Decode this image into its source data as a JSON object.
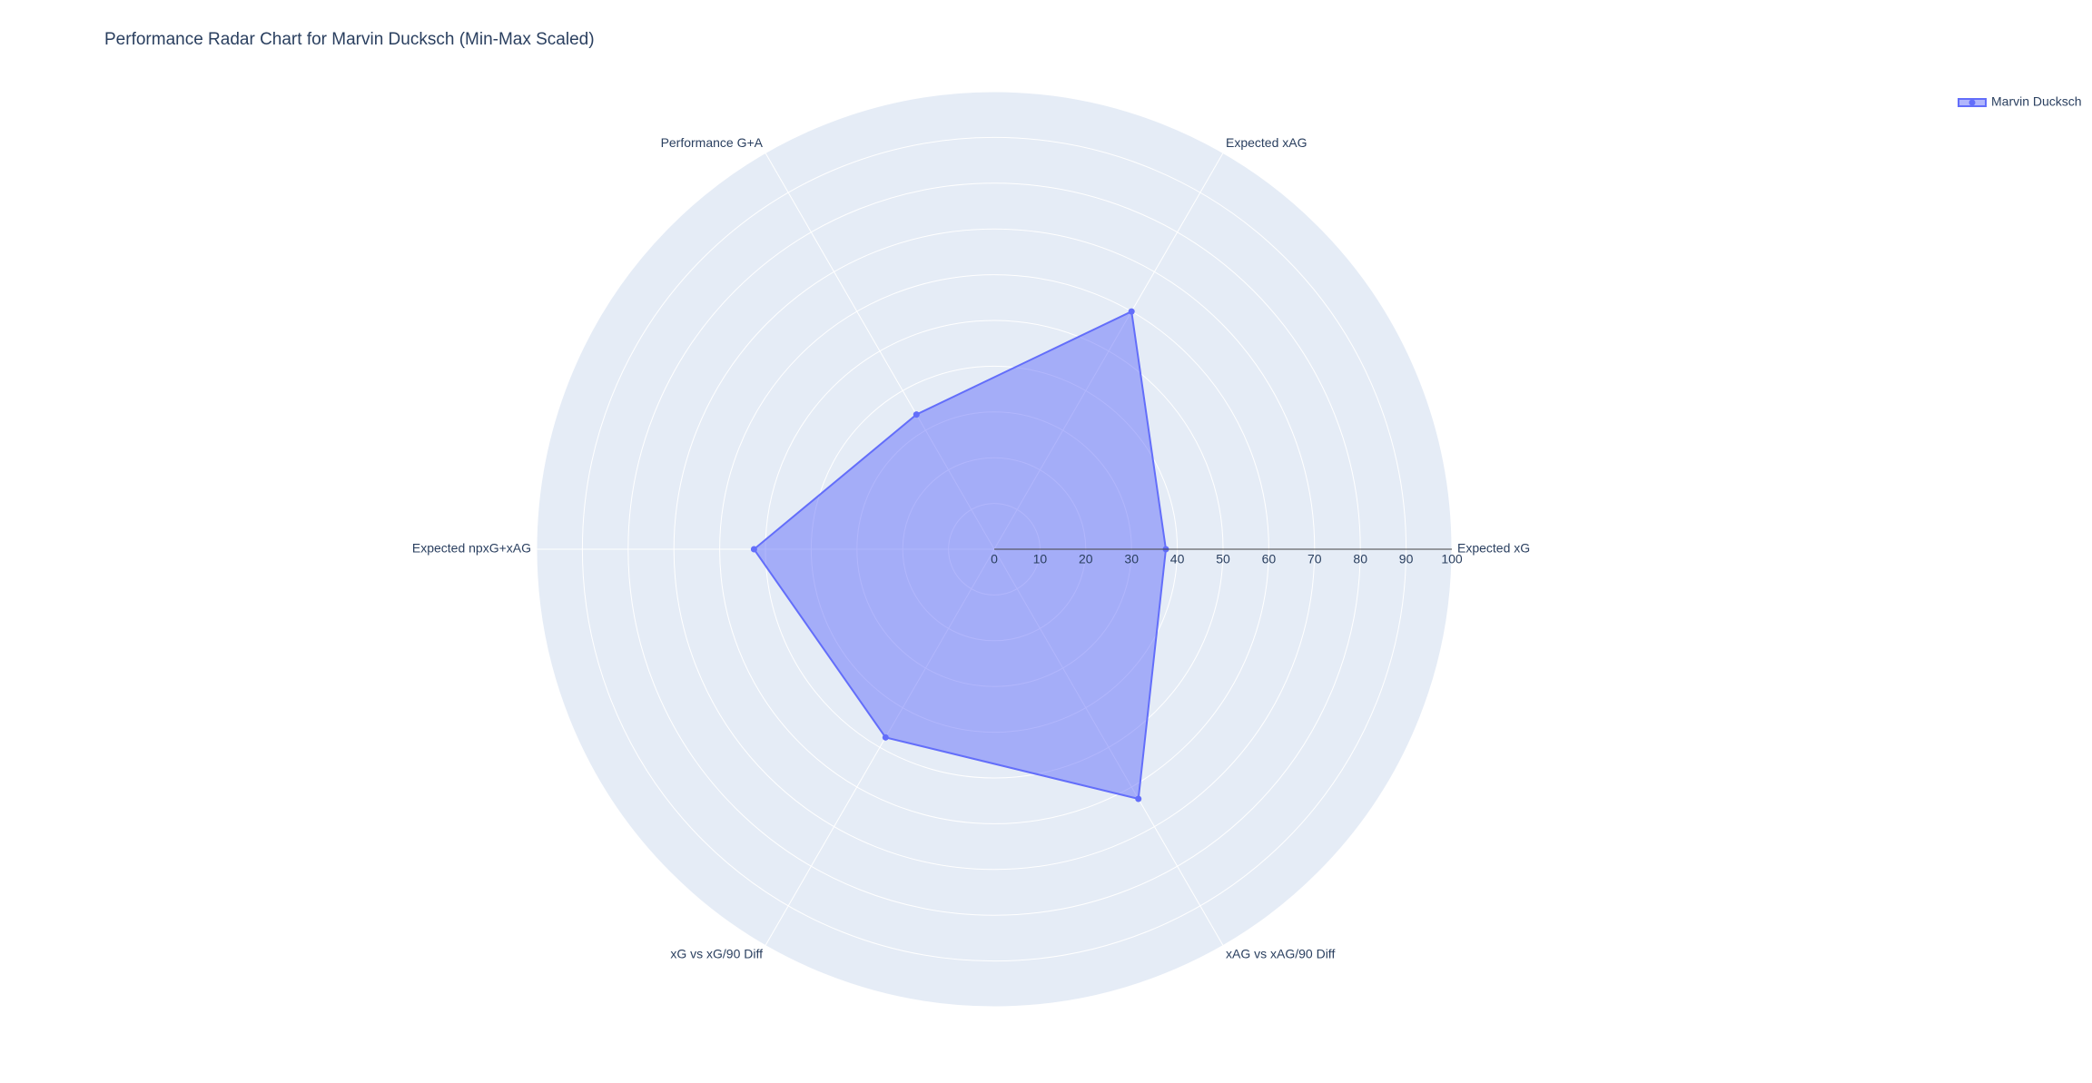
{
  "chart_data": {
    "type": "radar",
    "title": "Performance Radar Chart for Marvin Ducksch (Min-Max Scaled)",
    "categories": [
      "Expected xG",
      "Expected xAG",
      "Performance G+A",
      "Expected npxG+xAG",
      "xG vs xG/90 Diff",
      "xAG vs xAG/90 Diff"
    ],
    "series": [
      {
        "name": "Marvin Ducksch",
        "color": "#636efa",
        "values": [
          37.5,
          60,
          34,
          52.5,
          47.5,
          63
        ]
      }
    ],
    "rlim": [
      0,
      100
    ],
    "rticks": [
      0,
      10,
      20,
      30,
      40,
      50,
      60,
      70,
      80,
      90,
      100
    ],
    "fill": true,
    "legend": "top-right"
  }
}
